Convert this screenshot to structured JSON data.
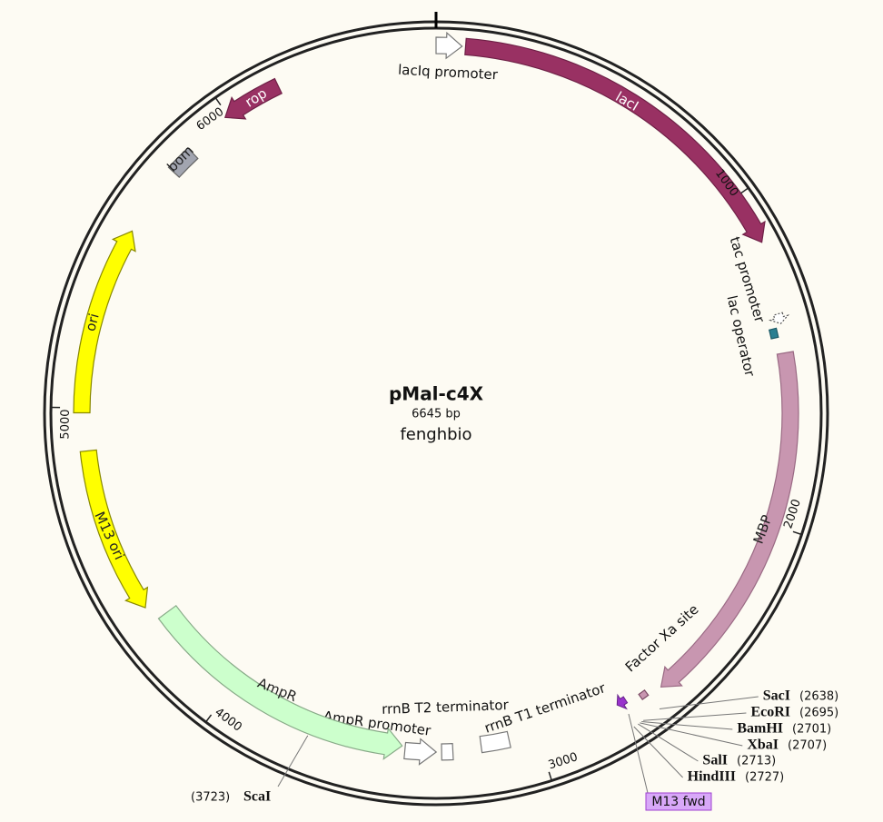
{
  "map": {
    "name": "pMal-c4X",
    "size": "6645 bp",
    "subtitle": "fenghbio"
  },
  "features": [
    {
      "label": "lacIq promoter"
    },
    {
      "label": "lacI"
    },
    {
      "label": "tac promoter"
    },
    {
      "label": "lac operator"
    },
    {
      "label": "MBP"
    },
    {
      "label": "Factor Xa site"
    },
    {
      "label": "rrnB T1 terminator"
    },
    {
      "label": "rrnB T2 terminator"
    },
    {
      "label": "AmpR promoter"
    },
    {
      "label": "AmpR"
    },
    {
      "label": "M13 ori"
    },
    {
      "label": "ori"
    },
    {
      "label": "bom"
    },
    {
      "label": "rop"
    }
  ],
  "ticks": [
    1000,
    2000,
    3000,
    4000,
    5000,
    6000
  ],
  "enzymes": [
    {
      "name": "SacI",
      "position": "(2638)"
    },
    {
      "name": "EcoRI",
      "position": "(2695)"
    },
    {
      "name": "BamHI",
      "position": "(2701)"
    },
    {
      "name": "XbaI",
      "position": "(2707)"
    },
    {
      "name": "SalI",
      "position": "(2713)"
    },
    {
      "name": "HindIII",
      "position": "(2727)"
    },
    {
      "name": "ScaI",
      "position": "(3723)"
    }
  ],
  "primer": {
    "label": "M13 fwd"
  }
}
